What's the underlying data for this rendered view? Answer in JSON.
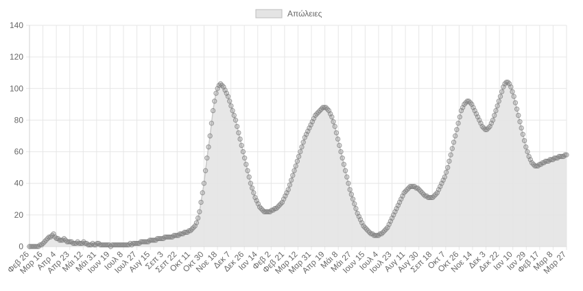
{
  "chart_data": {
    "type": "line",
    "title": "",
    "xlabel": "",
    "ylabel": "",
    "ylim": [
      0,
      140
    ],
    "yticks": [
      0,
      20,
      40,
      60,
      80,
      100,
      120,
      140
    ],
    "grid": true,
    "legend_position": "top-center",
    "x_tick_labels": [
      "Φεβ 26",
      "Μαρ 16",
      "Απρ 4",
      "Απρ 23",
      "Μάι 12",
      "Μάι 31",
      "Ιουν 19",
      "Ιουλ 8",
      "Ιουλ 27",
      "Αυγ 15",
      "Σεπ 3",
      "Σεπ 22",
      "Οκτ 11",
      "Οκτ 30",
      "Νοε 18",
      "Δεκ 7",
      "Δεκ 26",
      "Ιαν 14",
      "Φεβ 2",
      "Φεβ 21",
      "Μαρ 12",
      "Μαρ 31",
      "Απρ 19",
      "Μάι 8",
      "Μάι 27",
      "Ιουν 15",
      "Ιουλ 4",
      "Ιουλ 23",
      "Αυγ 11",
      "Αυγ 30",
      "Σεπ 18",
      "Οκτ 7",
      "Οκτ 26",
      "Νοε 14",
      "Δεκ 3",
      "Δεκ 22",
      "Ιαν 10",
      "Ιαν 29",
      "Φεβ 17",
      "Μαρ 8",
      "Μαρ 27"
    ],
    "series": [
      {
        "name": "Απώλειες",
        "color": "#c8c8c8",
        "fill": "#e4e4e4",
        "values": [
          0,
          0,
          0,
          0,
          0,
          0,
          0,
          1,
          1,
          2,
          3,
          4,
          5,
          6,
          6,
          7,
          8,
          6,
          5,
          5,
          4,
          4,
          4,
          5,
          4,
          3,
          3,
          3,
          3,
          2,
          2,
          2,
          3,
          2,
          2,
          2,
          3,
          2,
          2,
          1,
          1,
          1,
          2,
          1,
          1,
          2,
          2,
          1,
          1,
          1,
          1,
          1,
          1,
          1,
          0,
          1,
          1,
          1,
          1,
          1,
          1,
          1,
          1,
          1,
          1,
          1,
          1,
          2,
          1,
          2,
          2,
          2,
          2,
          2,
          3,
          3,
          3,
          3,
          3,
          3,
          4,
          4,
          4,
          4,
          4,
          5,
          5,
          5,
          5,
          5,
          6,
          6,
          6,
          6,
          6,
          6,
          7,
          7,
          7,
          7,
          8,
          8,
          8,
          9,
          9,
          9,
          10,
          10,
          11,
          12,
          13,
          15,
          18,
          22,
          28,
          34,
          40,
          48,
          56,
          63,
          70,
          78,
          86,
          92,
          97,
          100,
          102,
          103,
          102,
          101,
          99,
          97,
          95,
          92,
          89,
          86,
          83,
          80,
          76,
          72,
          68,
          64,
          60,
          56,
          52,
          48,
          44,
          40,
          37,
          34,
          31,
          29,
          27,
          25,
          24,
          23,
          22,
          22,
          22,
          22,
          22,
          23,
          23,
          24,
          24,
          25,
          26,
          27,
          28,
          30,
          32,
          34,
          36,
          39,
          42,
          45,
          48,
          51,
          54,
          57,
          60,
          63,
          66,
          69,
          71,
          73,
          75,
          77,
          79,
          81,
          83,
          84,
          85,
          86,
          87,
          88,
          88,
          88,
          87,
          86,
          84,
          82,
          79,
          76,
          72,
          68,
          64,
          60,
          56,
          52,
          48,
          44,
          40,
          36,
          33,
          30,
          27,
          24,
          21,
          19,
          17,
          15,
          13,
          12,
          11,
          10,
          9,
          8,
          8,
          7,
          7,
          7,
          7,
          8,
          8,
          9,
          10,
          11,
          12,
          14,
          16,
          18,
          20,
          22,
          24,
          26,
          28,
          30,
          32,
          34,
          35,
          36,
          37,
          38,
          38,
          38,
          38,
          37,
          37,
          36,
          35,
          34,
          33,
          32,
          32,
          31,
          31,
          31,
          31,
          32,
          33,
          34,
          36,
          38,
          40,
          42,
          44,
          47,
          50,
          54,
          58,
          62,
          66,
          70,
          74,
          78,
          82,
          86,
          88,
          90,
          91,
          92,
          92,
          91,
          90,
          88,
          86,
          84,
          82,
          80,
          78,
          76,
          75,
          74,
          74,
          75,
          76,
          78,
          80,
          83,
          86,
          89,
          92,
          95,
          98,
          101,
          103,
          104,
          104,
          103,
          101,
          98,
          95,
          91,
          87,
          83,
          79,
          75,
          71,
          67,
          63,
          60,
          57,
          55,
          53,
          52,
          51,
          51,
          51,
          52,
          52,
          53,
          53,
          54,
          54,
          54,
          55,
          55,
          55,
          56,
          56,
          56,
          57,
          57,
          57,
          57,
          58,
          58
        ]
      }
    ]
  }
}
